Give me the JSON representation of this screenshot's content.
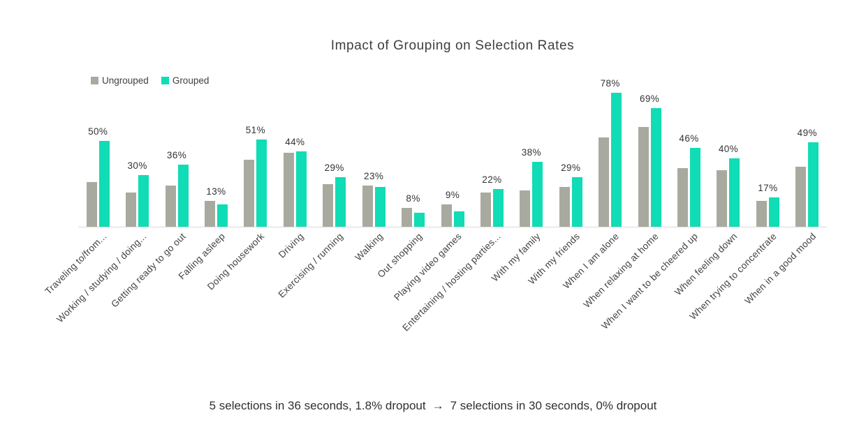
{
  "title": "Impact of Grouping on Selection Rates",
  "footer": {
    "before": "5 selections in 36 seconds, 1.8% dropout",
    "arrow": "→",
    "after": "7 selections in 30 seconds, 0% dropout"
  },
  "colors": {
    "ungrouped": "#a9aa9f",
    "grouped": "#10dcb5",
    "axis_line": "#d9d9d9",
    "text": "#3e3e3e"
  },
  "chart_data": {
    "type": "bar",
    "title": "Impact of Grouping on Selection Rates",
    "categories": [
      "Traveling to/from...",
      "Working / studying / doing...",
      "Getting ready to go out",
      "Falling asleep",
      "Doing housework",
      "Driving",
      "Exercising / running",
      "Walking",
      "Out shopping",
      "Playing video games",
      "Entertaining / hosting parties...",
      "With my family",
      "With my friends",
      "When I am alone",
      "When relaxing at home",
      "When I want to be cheered up",
      "When feeling down",
      "When trying to concentrate",
      "When in a good mood"
    ],
    "series": [
      {
        "name": "Ungrouped",
        "color": "#a9aa9f",
        "values": [
          26,
          20,
          24,
          15,
          39,
          43,
          25,
          24,
          11,
          13,
          20,
          21,
          23,
          52,
          58,
          34,
          33,
          15,
          35
        ]
      },
      {
        "name": "Grouped",
        "color": "#10dcb5",
        "values": [
          50,
          30,
          36,
          13,
          51,
          44,
          29,
          23,
          8,
          9,
          22,
          38,
          29,
          78,
          69,
          46,
          40,
          17,
          49
        ]
      }
    ],
    "data_labels": [
      "50%",
      "30%",
      "36%",
      "13%",
      "51%",
      "44%",
      "29%",
      "23%",
      "8%",
      "9%",
      "22%",
      "38%",
      "29%",
      "78%",
      "69%",
      "46%",
      "40%",
      "17%",
      "49%"
    ],
    "data_label_series": "Grouped",
    "xlabel": "",
    "ylabel": "",
    "ylim": [
      0,
      100
    ],
    "grid": false,
    "legend_position": "top-left"
  }
}
